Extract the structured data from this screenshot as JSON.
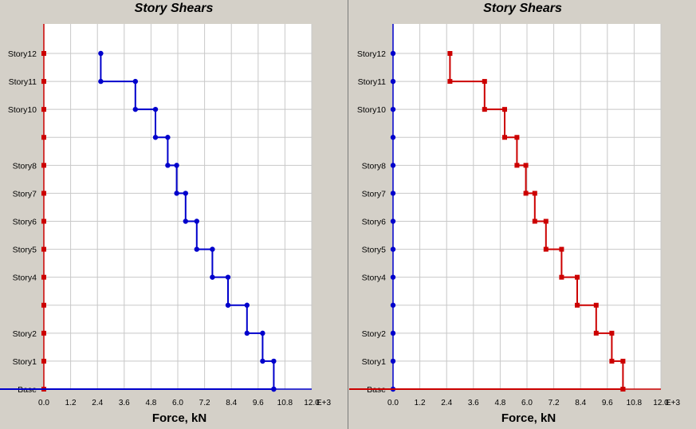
{
  "chart_data": [
    {
      "type": "line",
      "title": "Story Shears",
      "xlabel": "Force, kN",
      "x_unit_suffix": "E+3",
      "xlim": [
        0,
        12
      ],
      "x_ticks": [
        "0.0",
        "1.2",
        "2.4",
        "3.6",
        "4.8",
        "6.0",
        "7.2",
        "8.4",
        "9.6",
        "10.8",
        "12.0"
      ],
      "stories": [
        "Base",
        "Story1",
        "Story2",
        "",
        "Story4",
        "Story5",
        "Story6",
        "Story7",
        "Story8",
        "",
        "Story10",
        "Story11",
        "Story12"
      ],
      "story_values": [
        10.3,
        10.3,
        9.8,
        9.1,
        8.25,
        7.55,
        6.85,
        6.35,
        5.95,
        5.55,
        5.0,
        4.1,
        2.55
      ],
      "series": [
        {
          "color": "#0000cc",
          "marker": "circle"
        },
        {
          "color": "#cc0000",
          "marker": "square",
          "axis_line": true
        }
      ],
      "grid": true
    },
    {
      "type": "line",
      "title": "Story Shears",
      "xlabel": "Force, kN",
      "x_unit_suffix": "E+3",
      "xlim": [
        0,
        12
      ],
      "x_ticks": [
        "0.0",
        "1.2",
        "2.4",
        "3.6",
        "4.8",
        "6.0",
        "7.2",
        "8.4",
        "9.6",
        "10.8",
        "12.0"
      ],
      "stories": [
        "Base",
        "Story1",
        "Story2",
        "",
        "Story4",
        "Story5",
        "Story6",
        "Story7",
        "Story8",
        "",
        "Story10",
        "Story11",
        "Story12"
      ],
      "story_values": [
        10.3,
        10.3,
        9.8,
        9.1,
        8.25,
        7.55,
        6.85,
        6.35,
        5.95,
        5.55,
        5.0,
        4.1,
        2.55
      ],
      "series": [
        {
          "color": "#cc0000",
          "marker": "square"
        },
        {
          "color": "#0000cc",
          "marker": "circle",
          "axis_line": true
        }
      ],
      "grid": true
    }
  ]
}
